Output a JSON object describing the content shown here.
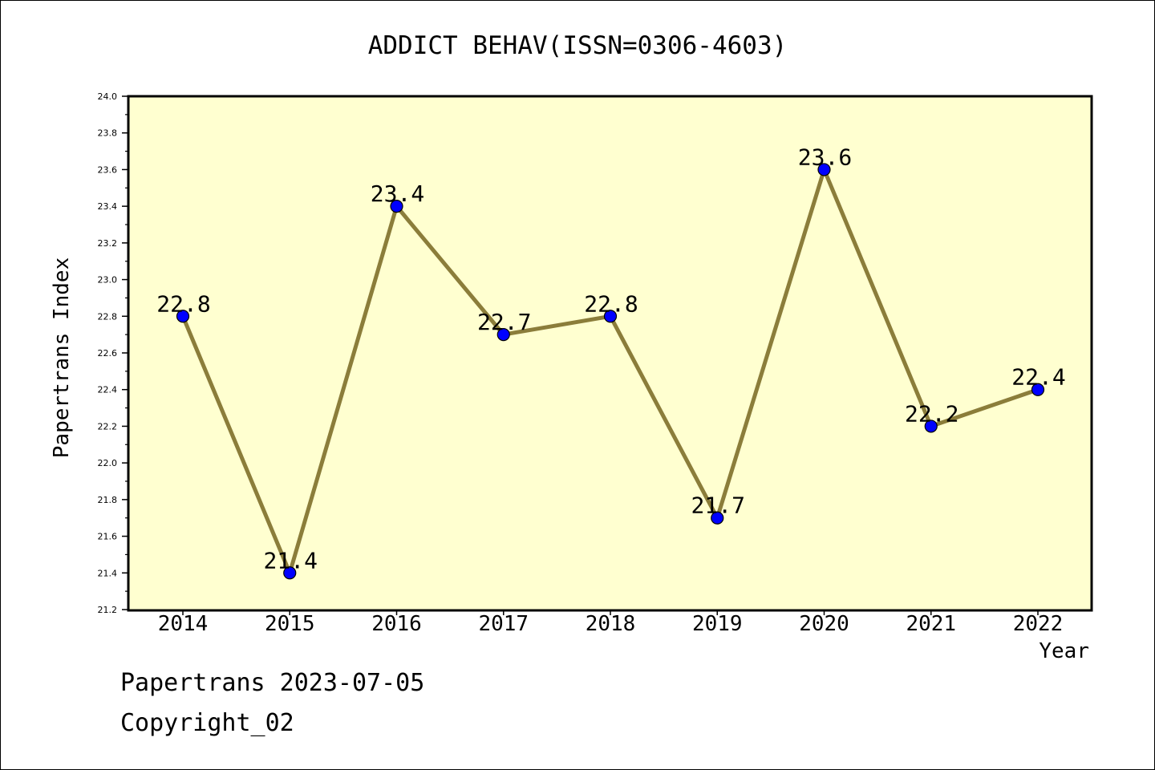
{
  "chart_data": {
    "type": "line",
    "title": "ADDICT BEHAV(ISSN=0306-4603)",
    "xlabel": "Year",
    "ylabel": "Papertrans Index",
    "categories": [
      "2014",
      "2015",
      "2016",
      "2017",
      "2018",
      "2019",
      "2020",
      "2021",
      "2022"
    ],
    "series": [
      {
        "values": [
          22.8,
          21.4,
          23.4,
          22.7,
          22.8,
          21.7,
          23.6,
          22.2,
          22.4
        ],
        "data_labels": [
          "22.8",
          "21.4",
          "23.4",
          "22.7",
          "22.8",
          "21.7",
          "23.6",
          "22.2",
          "22.4"
        ]
      }
    ],
    "ylim": [
      21.2,
      24.0
    ],
    "yticks": [
      "21.2",
      "21.4",
      "21.6",
      "21.8",
      "22.0",
      "22.2",
      "22.4",
      "22.6",
      "22.8",
      "23.0",
      "23.2",
      "23.4",
      "23.6",
      "23.8",
      "24.0"
    ],
    "grid": false,
    "colors": {
      "plot_background": "#ffffd0",
      "line": "#8b7d3a",
      "marker": "#0000ff"
    }
  },
  "footer": {
    "date": "Papertrans 2023-07-05",
    "copyright": "Copyright_02"
  }
}
